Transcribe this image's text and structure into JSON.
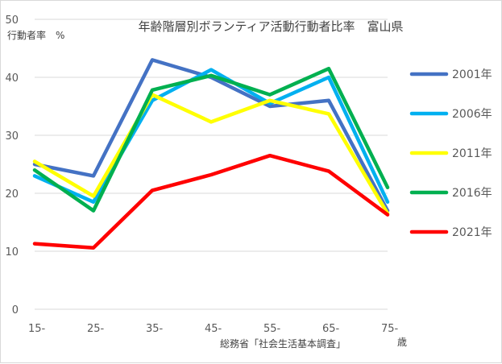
{
  "chart_data": {
    "type": "line",
    "title": "年齢階層別ボランティア活動行動者比率　富山県",
    "ylabel": "行動者率　%",
    "xlabel": "歳",
    "source": "総務省「社会生活基本調査」",
    "categories": [
      "15-",
      "25-",
      "35-",
      "45-",
      "55-",
      "65-",
      "75-"
    ],
    "yticks": [
      "0",
      "10",
      "20",
      "30",
      "40",
      "50"
    ],
    "ylim": [
      0,
      50
    ],
    "grid": true,
    "legend_position": "right",
    "series": [
      {
        "name": "2001年",
        "color": "#4472C4",
        "values": [
          25.0,
          23.0,
          43.0,
          40.0,
          35.0,
          36.0,
          17.0
        ]
      },
      {
        "name": "2006年",
        "color": "#00B0F0",
        "values": [
          23.0,
          18.5,
          36.0,
          41.3,
          35.5,
          40.0,
          18.5
        ]
      },
      {
        "name": "2011年",
        "color": "#FFFF00",
        "values": [
          25.5,
          19.5,
          37.0,
          32.3,
          36.0,
          33.7,
          16.5
        ]
      },
      {
        "name": "2016年",
        "color": "#00B050",
        "values": [
          24.0,
          17.0,
          37.8,
          40.3,
          37.0,
          41.5,
          21.0
        ]
      },
      {
        "name": "2021年",
        "color": "#FF0000",
        "values": [
          11.3,
          10.6,
          20.5,
          23.2,
          26.5,
          23.8,
          16.3
        ]
      }
    ]
  }
}
